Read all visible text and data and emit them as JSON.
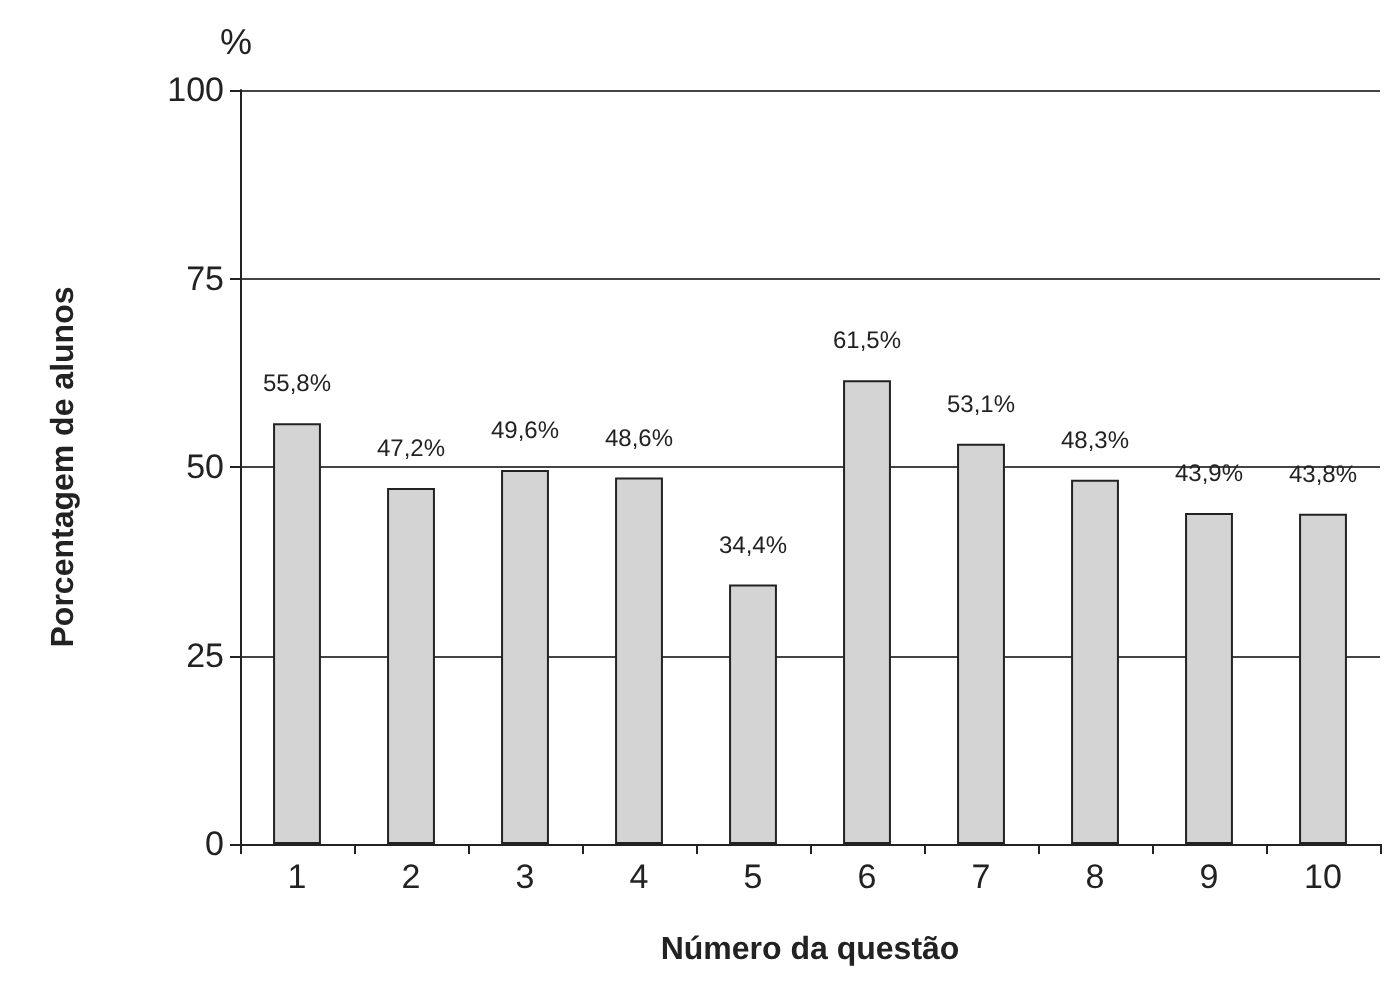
{
  "chart_data": {
    "type": "bar",
    "xlabel": "Número da questão",
    "ylabel": "Porcentagem de alunos",
    "annotations": [
      "%"
    ],
    "categories": [
      "1",
      "2",
      "3",
      "4",
      "5",
      "6",
      "7",
      "8",
      "9",
      "10"
    ],
    "values": [
      55.8,
      47.2,
      49.6,
      48.6,
      34.4,
      61.5,
      53.1,
      48.3,
      43.9,
      43.8
    ],
    "value_labels": [
      "55,8%",
      "47,2%",
      "49,6%",
      "48,6%",
      "34,4%",
      "61,5%",
      "53,1%",
      "48,3%",
      "43,9%",
      "43,8%"
    ],
    "color": "#d4d4d4",
    "ylim": [
      0,
      100
    ],
    "yticks": [
      0,
      25,
      50,
      75,
      100
    ],
    "grid": "y"
  }
}
